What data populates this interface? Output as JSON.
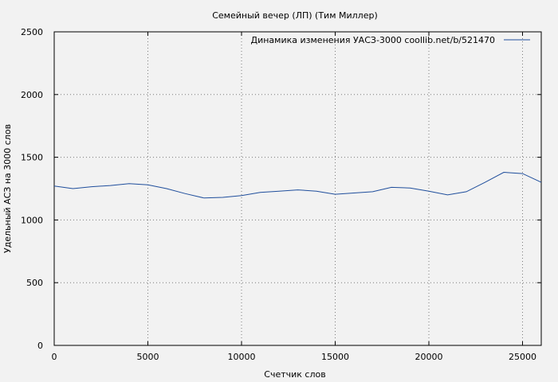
{
  "chart_data": {
    "type": "line",
    "title": "Семейный вечер (ЛП) (Тим Миллер)",
    "xlabel": "Счетчик слов",
    "ylabel": "Удельный АСЗ на 3000 слов",
    "xlim": [
      0,
      26000
    ],
    "ylim": [
      0,
      2500
    ],
    "xticks": [
      0,
      5000,
      10000,
      15000,
      20000,
      25000
    ],
    "yticks": [
      0,
      500,
      1000,
      1500,
      2000,
      2500
    ],
    "grid": true,
    "legend_position": "top-right",
    "series": [
      {
        "name": "Динамика изменения УАСЗ-3000  coollib.net/b/521470",
        "color": "#1f4e9c",
        "x": [
          0,
          1000,
          2000,
          3000,
          4000,
          5000,
          6000,
          7000,
          8000,
          9000,
          10000,
          11000,
          12000,
          13000,
          14000,
          15000,
          16000,
          17000,
          18000,
          19000,
          20000,
          21000,
          22000,
          23000,
          24000,
          25000,
          26000
        ],
        "y": [
          1270,
          1250,
          1265,
          1275,
          1290,
          1280,
          1250,
          1210,
          1175,
          1180,
          1195,
          1220,
          1230,
          1240,
          1230,
          1205,
          1215,
          1225,
          1260,
          1255,
          1230,
          1200,
          1225,
          1300,
          1380,
          1370,
          1300
        ]
      }
    ]
  }
}
